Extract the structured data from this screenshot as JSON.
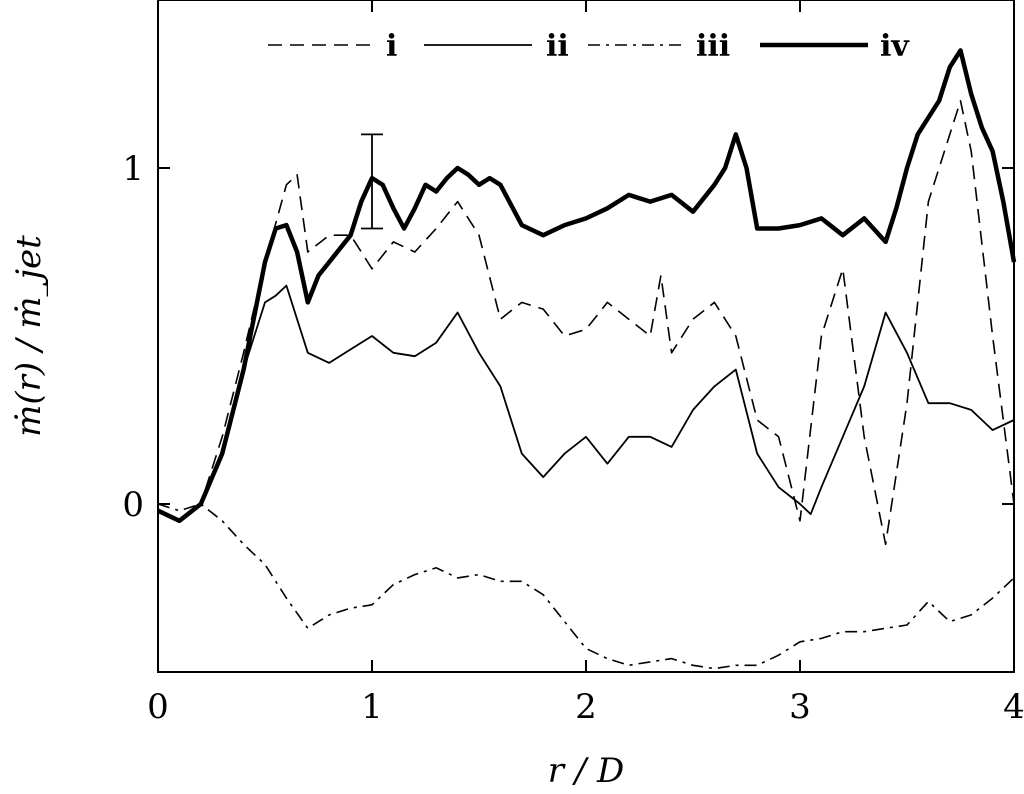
{
  "chart_data": {
    "type": "line",
    "xlabel": "r / D",
    "ylabel": "ṁ(r) / ṁ_jet",
    "xlim": [
      0,
      4
    ],
    "ylim": [
      -0.5,
      1.5
    ],
    "x_ticks": [
      0,
      1,
      2,
      3,
      4
    ],
    "x_tick_labels": [
      "0",
      "1",
      "2",
      "3",
      "4"
    ],
    "y_ticks": [
      0,
      1
    ],
    "y_tick_labels": [
      "0",
      "1"
    ],
    "grid": false,
    "legend_position": "top",
    "series": [
      {
        "name": "i",
        "style": "dashed",
        "x": [
          0,
          0.1,
          0.2,
          0.3,
          0.4,
          0.5,
          0.6,
          0.65,
          0.7,
          0.8,
          0.9,
          1.0,
          1.1,
          1.2,
          1.3,
          1.4,
          1.5,
          1.6,
          1.7,
          1.8,
          1.9,
          2.0,
          2.1,
          2.2,
          2.3,
          2.35,
          2.4,
          2.5,
          2.6,
          2.7,
          2.8,
          2.9,
          3.0,
          3.1,
          3.2,
          3.3,
          3.4,
          3.5,
          3.6,
          3.7,
          3.75,
          3.8,
          3.9,
          4.0
        ],
        "y": [
          -0.02,
          -0.05,
          0.0,
          0.2,
          0.45,
          0.72,
          0.95,
          0.98,
          0.75,
          0.8,
          0.8,
          0.7,
          0.78,
          0.75,
          0.82,
          0.9,
          0.8,
          0.55,
          0.6,
          0.58,
          0.5,
          0.52,
          0.6,
          0.55,
          0.5,
          0.68,
          0.45,
          0.55,
          0.6,
          0.5,
          0.25,
          0.2,
          -0.05,
          0.5,
          0.7,
          0.2,
          -0.12,
          0.3,
          0.9,
          1.1,
          1.2,
          1.05,
          0.5,
          0.0
        ]
      },
      {
        "name": "ii",
        "style": "solid",
        "x": [
          0,
          0.1,
          0.2,
          0.3,
          0.4,
          0.5,
          0.55,
          0.6,
          0.7,
          0.8,
          0.9,
          1.0,
          1.1,
          1.2,
          1.3,
          1.4,
          1.5,
          1.6,
          1.7,
          1.8,
          1.9,
          2.0,
          2.1,
          2.2,
          2.3,
          2.4,
          2.5,
          2.6,
          2.7,
          2.8,
          2.9,
          3.0,
          3.05,
          3.1,
          3.2,
          3.3,
          3.4,
          3.5,
          3.6,
          3.7,
          3.8,
          3.9,
          4.0
        ],
        "y": [
          -0.02,
          -0.05,
          0.0,
          0.15,
          0.4,
          0.6,
          0.62,
          0.65,
          0.45,
          0.42,
          0.46,
          0.5,
          0.45,
          0.44,
          0.48,
          0.57,
          0.45,
          0.35,
          0.15,
          0.08,
          0.15,
          0.2,
          0.12,
          0.2,
          0.2,
          0.17,
          0.28,
          0.35,
          0.4,
          0.15,
          0.05,
          0.0,
          -0.03,
          0.05,
          0.2,
          0.35,
          0.57,
          0.45,
          0.3,
          0.3,
          0.28,
          0.22,
          0.25
        ]
      },
      {
        "name": "iii",
        "style": "dash-dot",
        "x": [
          0,
          0.1,
          0.2,
          0.3,
          0.4,
          0.5,
          0.6,
          0.7,
          0.8,
          0.9,
          1.0,
          1.1,
          1.2,
          1.3,
          1.4,
          1.5,
          1.6,
          1.7,
          1.8,
          1.9,
          2.0,
          2.1,
          2.2,
          2.3,
          2.4,
          2.5,
          2.6,
          2.7,
          2.8,
          2.9,
          3.0,
          3.1,
          3.2,
          3.3,
          3.4,
          3.5,
          3.6,
          3.7,
          3.8,
          3.9,
          4.0
        ],
        "y": [
          0.0,
          -0.02,
          0.0,
          -0.05,
          -0.12,
          -0.18,
          -0.28,
          -0.37,
          -0.33,
          -0.31,
          -0.3,
          -0.24,
          -0.21,
          -0.19,
          -0.22,
          -0.21,
          -0.23,
          -0.23,
          -0.27,
          -0.35,
          -0.43,
          -0.46,
          -0.48,
          -0.47,
          -0.46,
          -0.48,
          -0.49,
          -0.48,
          -0.48,
          -0.45,
          -0.41,
          -0.4,
          -0.38,
          -0.38,
          -0.37,
          -0.36,
          -0.29,
          -0.35,
          -0.33,
          -0.28,
          -0.22
        ]
      },
      {
        "name": "iv",
        "style": "thick-solid",
        "x": [
          0,
          0.1,
          0.2,
          0.3,
          0.4,
          0.5,
          0.55,
          0.6,
          0.65,
          0.7,
          0.75,
          0.8,
          0.9,
          0.95,
          1.0,
          1.05,
          1.1,
          1.15,
          1.2,
          1.25,
          1.3,
          1.35,
          1.4,
          1.45,
          1.5,
          1.55,
          1.6,
          1.7,
          1.8,
          1.9,
          2.0,
          2.1,
          2.2,
          2.3,
          2.4,
          2.5,
          2.6,
          2.65,
          2.7,
          2.75,
          2.8,
          2.9,
          3.0,
          3.1,
          3.2,
          3.3,
          3.4,
          3.45,
          3.5,
          3.55,
          3.6,
          3.65,
          3.7,
          3.75,
          3.8,
          3.85,
          3.9,
          3.95,
          4.0
        ],
        "y": [
          -0.02,
          -0.05,
          0.0,
          0.15,
          0.4,
          0.72,
          0.82,
          0.83,
          0.75,
          0.6,
          0.68,
          0.72,
          0.8,
          0.9,
          0.97,
          0.95,
          0.88,
          0.82,
          0.88,
          0.95,
          0.93,
          0.97,
          1.0,
          0.98,
          0.95,
          0.97,
          0.95,
          0.83,
          0.8,
          0.83,
          0.85,
          0.88,
          0.92,
          0.9,
          0.92,
          0.87,
          0.95,
          1.0,
          1.1,
          1.0,
          0.82,
          0.82,
          0.83,
          0.85,
          0.8,
          0.85,
          0.78,
          0.88,
          1.0,
          1.1,
          1.15,
          1.2,
          1.3,
          1.35,
          1.22,
          1.12,
          1.05,
          0.9,
          0.72
        ]
      }
    ],
    "error_bars": [
      {
        "x": 1.0,
        "y_low": 0.82,
        "y_high": 1.1
      }
    ]
  }
}
